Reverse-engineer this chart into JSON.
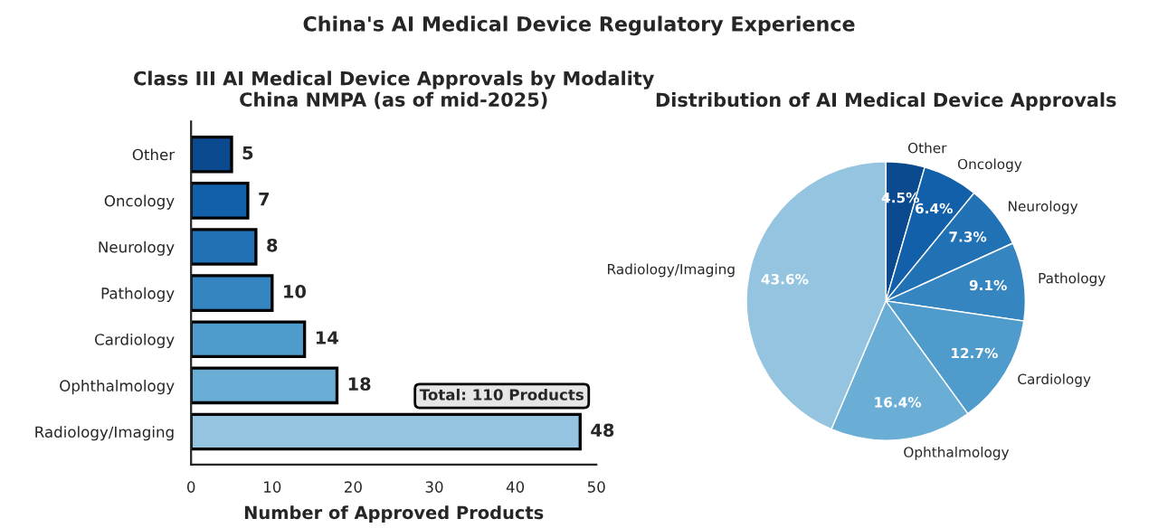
{
  "chart_data": [
    {
      "type": "bar",
      "orientation": "horizontal",
      "title": "Class III AI Medical Device Approvals by Modality\nChina NMPA (as of mid-2025)",
      "xlabel": "Number of Approved Products",
      "categories": [
        "Other",
        "Oncology",
        "Neurology",
        "Pathology",
        "Cardiology",
        "Ophthalmology",
        "Radiology/Imaging"
      ],
      "values": [
        5,
        7,
        8,
        10,
        14,
        18,
        48
      ],
      "colors": [
        "#0b4a8f",
        "#1360aa",
        "#2171b5",
        "#3585c1",
        "#4f9bcb",
        "#6aaed6",
        "#94c4df"
      ],
      "xlim": [
        0,
        50
      ],
      "xticks": [
        0,
        10,
        20,
        30,
        40,
        50
      ],
      "data_labels": true,
      "grid": false,
      "legend": false,
      "annotations": [
        "China's AI Medical Device Regulatory Experience",
        "Total: 110 Products"
      ]
    },
    {
      "type": "pie",
      "title": "Distribution of AI Medical Device Approvals",
      "categories": [
        "Other",
        "Oncology",
        "Neurology",
        "Pathology",
        "Cardiology",
        "Ophthalmology",
        "Radiology/Imaging"
      ],
      "values": [
        4.5,
        6.4,
        7.3,
        9.1,
        12.7,
        16.4,
        43.6
      ],
      "value_labels": [
        "4.5%",
        "6.4%",
        "7.3%",
        "9.1%",
        "12.7%",
        "16.4%",
        "43.6%"
      ],
      "colors": [
        "#0b4a8f",
        "#1360aa",
        "#2171b5",
        "#3585c1",
        "#4f9bcb",
        "#6aaed6",
        "#94c4df"
      ]
    }
  ]
}
